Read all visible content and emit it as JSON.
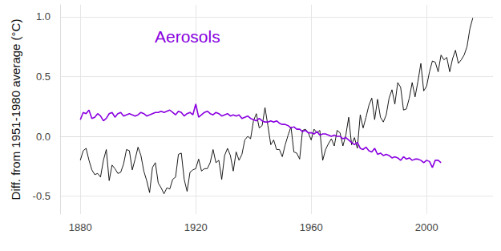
{
  "chart_data": {
    "type": "line",
    "y_label": "Diff. from 1951-1980 average (°C)",
    "x": [
      1880,
      1881,
      1882,
      1883,
      1884,
      1885,
      1886,
      1887,
      1888,
      1889,
      1890,
      1891,
      1892,
      1893,
      1894,
      1895,
      1896,
      1897,
      1898,
      1899,
      1900,
      1901,
      1902,
      1903,
      1904,
      1905,
      1906,
      1907,
      1908,
      1909,
      1910,
      1911,
      1912,
      1913,
      1914,
      1915,
      1916,
      1917,
      1918,
      1919,
      1920,
      1921,
      1922,
      1923,
      1924,
      1925,
      1926,
      1927,
      1928,
      1929,
      1930,
      1931,
      1932,
      1933,
      1934,
      1935,
      1936,
      1937,
      1938,
      1939,
      1940,
      1941,
      1942,
      1943,
      1944,
      1945,
      1946,
      1947,
      1948,
      1949,
      1950,
      1951,
      1952,
      1953,
      1954,
      1955,
      1956,
      1957,
      1958,
      1959,
      1960,
      1961,
      1962,
      1963,
      1964,
      1965,
      1966,
      1967,
      1968,
      1969,
      1970,
      1971,
      1972,
      1973,
      1974,
      1975,
      1976,
      1977,
      1978,
      1979,
      1980,
      1981,
      1982,
      1983,
      1984,
      1985,
      1986,
      1987,
      1988,
      1989,
      1990,
      1991,
      1992,
      1993,
      1994,
      1995,
      1996,
      1997,
      1998,
      1999,
      2000,
      2001,
      2002,
      2003,
      2004,
      2005,
      2006,
      2007,
      2008,
      2009,
      2010,
      2011,
      2012,
      2013,
      2014,
      2015,
      2016
    ],
    "series": [
      {
        "color": "#000000",
        "values": [
          -0.2,
          -0.12,
          -0.1,
          -0.2,
          -0.28,
          -0.32,
          -0.31,
          -0.34,
          -0.2,
          -0.11,
          -0.37,
          -0.24,
          -0.27,
          -0.31,
          -0.3,
          -0.23,
          -0.11,
          -0.12,
          -0.28,
          -0.19,
          -0.09,
          -0.16,
          -0.29,
          -0.37,
          -0.47,
          -0.26,
          -0.22,
          -0.39,
          -0.43,
          -0.48,
          -0.43,
          -0.44,
          -0.36,
          -0.34,
          -0.15,
          -0.14,
          -0.36,
          -0.46,
          -0.3,
          -0.28,
          -0.27,
          -0.19,
          -0.29,
          -0.27,
          -0.27,
          -0.22,
          -0.11,
          -0.22,
          -0.2,
          -0.36,
          -0.16,
          -0.1,
          -0.16,
          -0.29,
          -0.13,
          -0.2,
          -0.15,
          -0.03,
          0.0,
          -0.02,
          0.13,
          0.19,
          0.07,
          0.09,
          0.24,
          0.09,
          -0.07,
          -0.03,
          -0.11,
          -0.11,
          -0.17,
          -0.07,
          0.01,
          0.08,
          -0.13,
          -0.14,
          -0.19,
          0.05,
          0.06,
          0.03,
          -0.03,
          0.06,
          0.03,
          0.05,
          -0.2,
          -0.11,
          -0.06,
          -0.02,
          -0.08,
          0.05,
          0.03,
          -0.08,
          0.01,
          0.16,
          -0.07,
          -0.01,
          -0.1,
          0.18,
          0.07,
          0.16,
          0.26,
          0.32,
          0.14,
          0.31,
          0.16,
          0.12,
          0.18,
          0.32,
          0.39,
          0.27,
          0.45,
          0.41,
          0.22,
          0.23,
          0.32,
          0.45,
          0.33,
          0.46,
          0.61,
          0.38,
          0.42,
          0.54,
          0.63,
          0.62,
          0.54,
          0.68,
          0.64,
          0.66,
          0.54,
          0.65,
          0.72,
          0.61,
          0.64,
          0.68,
          0.75,
          0.9,
          0.99
        ]
      },
      {
        "name": "Aerosols",
        "color": "#8a00e0",
        "values": [
          0.14,
          0.2,
          0.19,
          0.22,
          0.15,
          0.16,
          0.19,
          0.17,
          0.13,
          0.15,
          0.19,
          0.2,
          0.16,
          0.19,
          0.2,
          0.17,
          0.18,
          0.19,
          0.18,
          0.17,
          0.18,
          0.2,
          0.19,
          0.17,
          0.18,
          0.19,
          0.2,
          0.2,
          0.21,
          0.2,
          0.21,
          0.22,
          0.2,
          0.18,
          0.21,
          0.2,
          0.17,
          0.19,
          0.2,
          0.18,
          0.27,
          0.16,
          0.18,
          0.2,
          0.21,
          0.19,
          0.18,
          0.2,
          0.19,
          0.17,
          0.18,
          0.19,
          0.17,
          0.18,
          0.17,
          0.18,
          0.15,
          0.16,
          0.17,
          0.15,
          0.14,
          0.13,
          0.15,
          0.13,
          0.12,
          0.12,
          0.13,
          0.12,
          0.13,
          0.11,
          0.1,
          0.1,
          0.09,
          0.07,
          0.08,
          0.06,
          0.06,
          0.04,
          0.05,
          0.03,
          0.03,
          0.02,
          0.04,
          0.01,
          0.02,
          0.02,
          0.01,
          0.0,
          0.01,
          0.0,
          0.0,
          -0.02,
          -0.01,
          -0.03,
          -0.05,
          -0.07,
          -0.05,
          -0.1,
          -0.11,
          -0.09,
          -0.12,
          -0.13,
          -0.1,
          -0.15,
          -0.14,
          -0.16,
          -0.15,
          -0.16,
          -0.18,
          -0.17,
          -0.18,
          -0.2,
          -0.17,
          -0.19,
          -0.18,
          -0.2,
          -0.19,
          -0.19,
          -0.2,
          -0.22,
          -0.2,
          -0.21,
          -0.26,
          -0.2,
          -0.2,
          -0.22,
          null,
          null,
          null,
          null,
          null,
          null,
          null,
          null,
          null,
          null,
          null
        ]
      }
    ],
    "xlim": [
      1873,
      2023
    ],
    "xticks": [
      1880,
      1920,
      1960,
      2000
    ],
    "ylim": [
      -0.65,
      1.1
    ],
    "yticks": [
      -0.5,
      {
        "value": 0,
        "label": "0.0"
      },
      0.5,
      {
        "value": 1,
        "label": "1.0"
      }
    ],
    "grid": true
  }
}
